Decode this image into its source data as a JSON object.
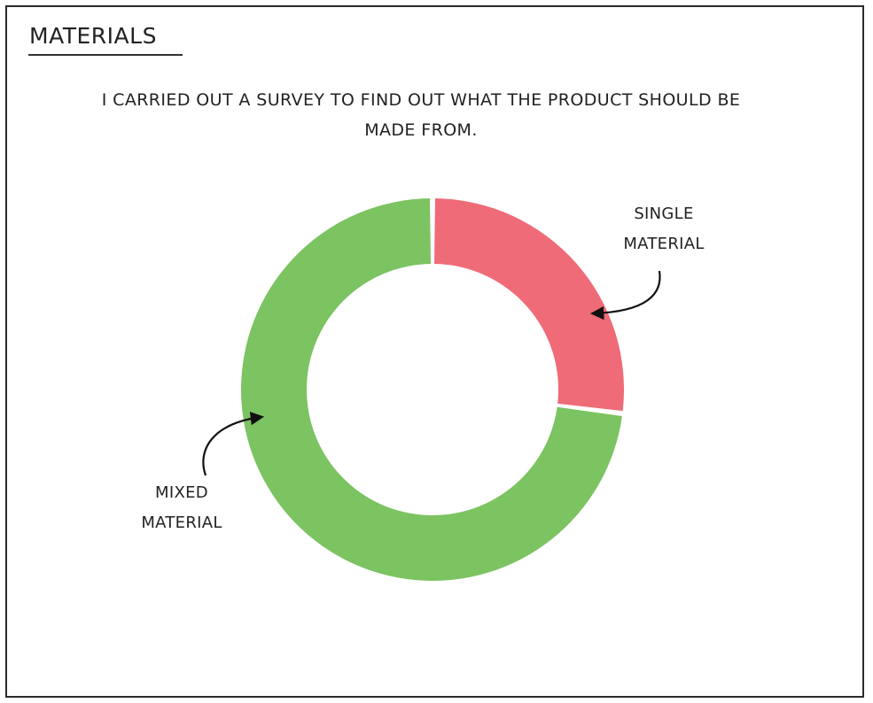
{
  "page": {
    "heading": "MATERIALS",
    "intro": "I CARRIED OUT A SURVEY TO FIND OUT WHAT THE PRODUCT SHOULD BE MADE FROM."
  },
  "chart_data": {
    "type": "pie",
    "variant": "donut",
    "title": "",
    "labels": [
      {
        "line1": "SINGLE",
        "line2": "MATERIAL"
      },
      {
        "line1": "MIXED",
        "line2": "MATERIAL"
      }
    ],
    "values": [
      27,
      73
    ],
    "unit": "percent",
    "colors": [
      "#ef6b78",
      "#7cc361"
    ],
    "start_angle": "12 o'clock, clockwise",
    "legend": "none (annotated with arrows)"
  }
}
